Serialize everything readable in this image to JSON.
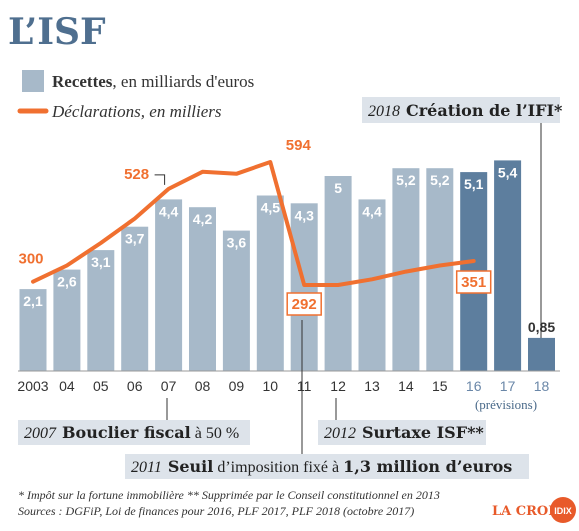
{
  "page": {
    "title": "L’ISF"
  },
  "legend": {
    "bars_bold": "Recettes",
    "bars_rest": ", en milliards d'euros",
    "line_label": "Déclarations, en milliers"
  },
  "chart_data": {
    "type": "bar",
    "categories": [
      "2003",
      "04",
      "05",
      "06",
      "07",
      "08",
      "09",
      "10",
      "11",
      "12",
      "13",
      "14",
      "15",
      "16",
      "17",
      "18"
    ],
    "series": [
      {
        "name": "Recettes, en milliards d'euros",
        "values": [
          2.1,
          2.6,
          3.1,
          3.7,
          4.4,
          4.2,
          3.6,
          4.5,
          4.3,
          5.0,
          4.4,
          5.2,
          5.2,
          5.1,
          5.4,
          0.85
        ],
        "labels": [
          "2,1",
          "2,6",
          "3,1",
          "3,7",
          "4,4",
          "4,2",
          "3,6",
          "4,5",
          "4,3",
          "5",
          "4,4",
          "5,2",
          "5,2",
          "5,1",
          "5,4",
          "0,85"
        ],
        "projected_from_index": 13
      },
      {
        "name": "Déclarations, en milliers",
        "type": "line",
        "x": [
          "2003",
          "04",
          "05",
          "06",
          "07",
          "08",
          "09",
          "10",
          "11",
          "12",
          "13",
          "14",
          "15",
          "16"
        ],
        "values": [
          300,
          340,
          395,
          455,
          528,
          570,
          565,
          594,
          292,
          292,
          306,
          325,
          340,
          351
        ],
        "labelled": [
          {
            "x": "2003",
            "label": "300"
          },
          {
            "x": "07",
            "label": "528"
          },
          {
            "x": "10",
            "label": "594"
          },
          {
            "x": "11",
            "label": "292"
          },
          {
            "x": "16",
            "label": "351"
          }
        ]
      }
    ],
    "projection_note": "(prévisions)",
    "grid": false,
    "colors": {
      "bar": "#a7b9c9",
      "bar_projected": "#5d7e9e",
      "line": "#f07030"
    }
  },
  "annotations": {
    "ifi": {
      "year": "2018",
      "text": "Création de l’IFI*"
    },
    "bouclier": {
      "year": "2007",
      "bold": "Bouclier fiscal",
      "rest": " à 50 %"
    },
    "seuil": {
      "year": "2011",
      "bold1": "Seuil",
      "mid": " d’imposition fixé à ",
      "bold2": "1,3 million d’euros"
    },
    "surtaxe": {
      "year": "2012",
      "bold": "Surtaxe ISF**"
    }
  },
  "footnotes": {
    "line1": "* Impôt sur la fortune immobilière   ** Supprimée par le Conseil constitutionnel en 2013",
    "line2": "Sources : DGFiP, Loi de finances pour 2016,  PLF 2017, PLF 2018 (octobre 2017)"
  },
  "logo": {
    "text": "LA CROIX",
    "badge": "IDIX"
  }
}
